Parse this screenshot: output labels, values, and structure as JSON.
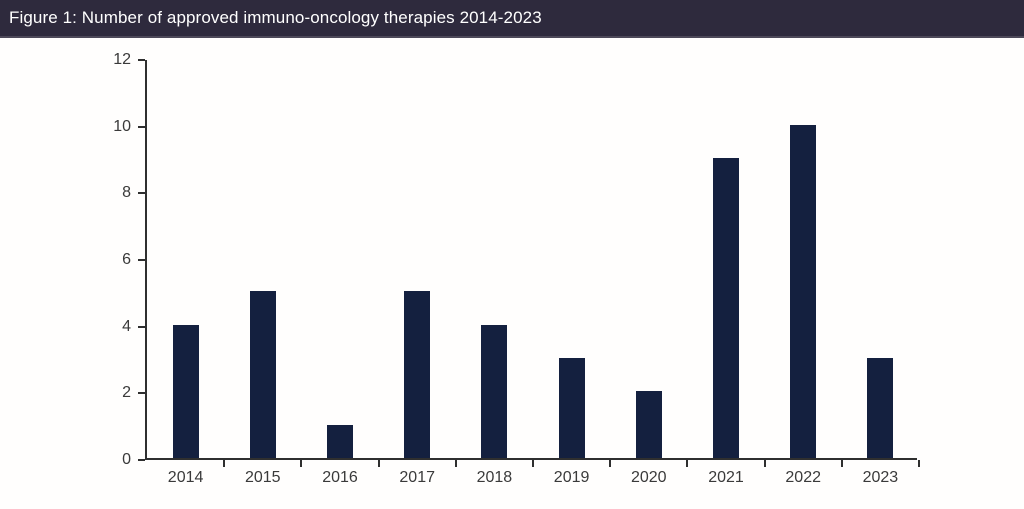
{
  "header": {
    "title": "Figure 1: Number of approved immuno-oncology therapies 2014-2023",
    "bg_color": "#2e2a3d",
    "text_color": "#ffffff"
  },
  "chart_data": {
    "type": "bar",
    "title": "Figure 1: Number of approved immuno-oncology therapies 2014-2023",
    "categories": [
      "2014",
      "2015",
      "2016",
      "2017",
      "2018",
      "2019",
      "2020",
      "2021",
      "2022",
      "2023"
    ],
    "values": [
      4,
      5,
      1,
      5,
      4,
      3,
      2,
      9,
      10,
      3
    ],
    "xlabel": "",
    "ylabel": "",
    "ylim": [
      0,
      12
    ],
    "yticks": [
      0,
      2,
      4,
      6,
      8,
      10,
      12
    ],
    "grid": false,
    "legend": false,
    "bar_color": "#14203f",
    "axis_color": "#2f2f2f",
    "tick_label_color": "#3a3a3a"
  }
}
